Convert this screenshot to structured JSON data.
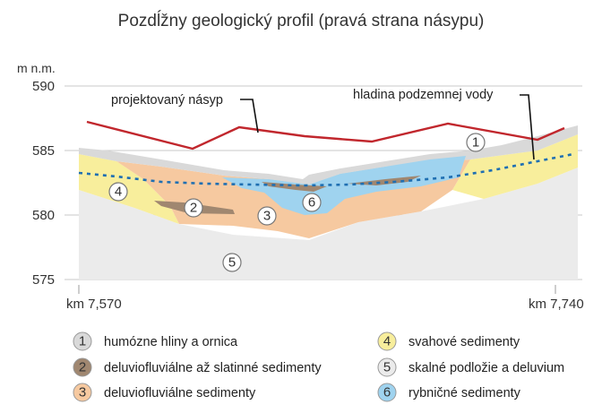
{
  "title": "Pozdĺžny geologický profil (pravá strana násypu)",
  "y_unit": "m n.m.",
  "y_ticks": [
    "590",
    "585",
    "580",
    "575"
  ],
  "x_labels": [
    "km 7,570",
    "km 7,740"
  ],
  "annotations": {
    "embankment": "projektovaný násyp",
    "groundwater": "hladina podzemnej vody"
  },
  "layer_markers": [
    "1",
    "2",
    "3",
    "4",
    "5",
    "6"
  ],
  "legend": [
    {
      "num": "1",
      "label": "humózne hliny a ornica",
      "color": "#d9d9d9"
    },
    {
      "num": "2",
      "label": "deluviofluviálne až slatinné sedimenty",
      "color": "#a08770"
    },
    {
      "num": "3",
      "label": "deluviofluviálne sedimenty",
      "color": "#f6c9a0"
    },
    {
      "num": "4",
      "label": "svahové sedimenty",
      "color": "#f8ee9c"
    },
    {
      "num": "5",
      "label": "skalné podložie a deluvium",
      "color": "#ebebeb"
    },
    {
      "num": "6",
      "label": "rybničné sedimenty",
      "color": "#9fd3ef"
    }
  ],
  "colors": {
    "embankment_line": "#c1272d",
    "groundwater_line": "#1f6fb2",
    "grid": "#bdbdbd"
  }
}
